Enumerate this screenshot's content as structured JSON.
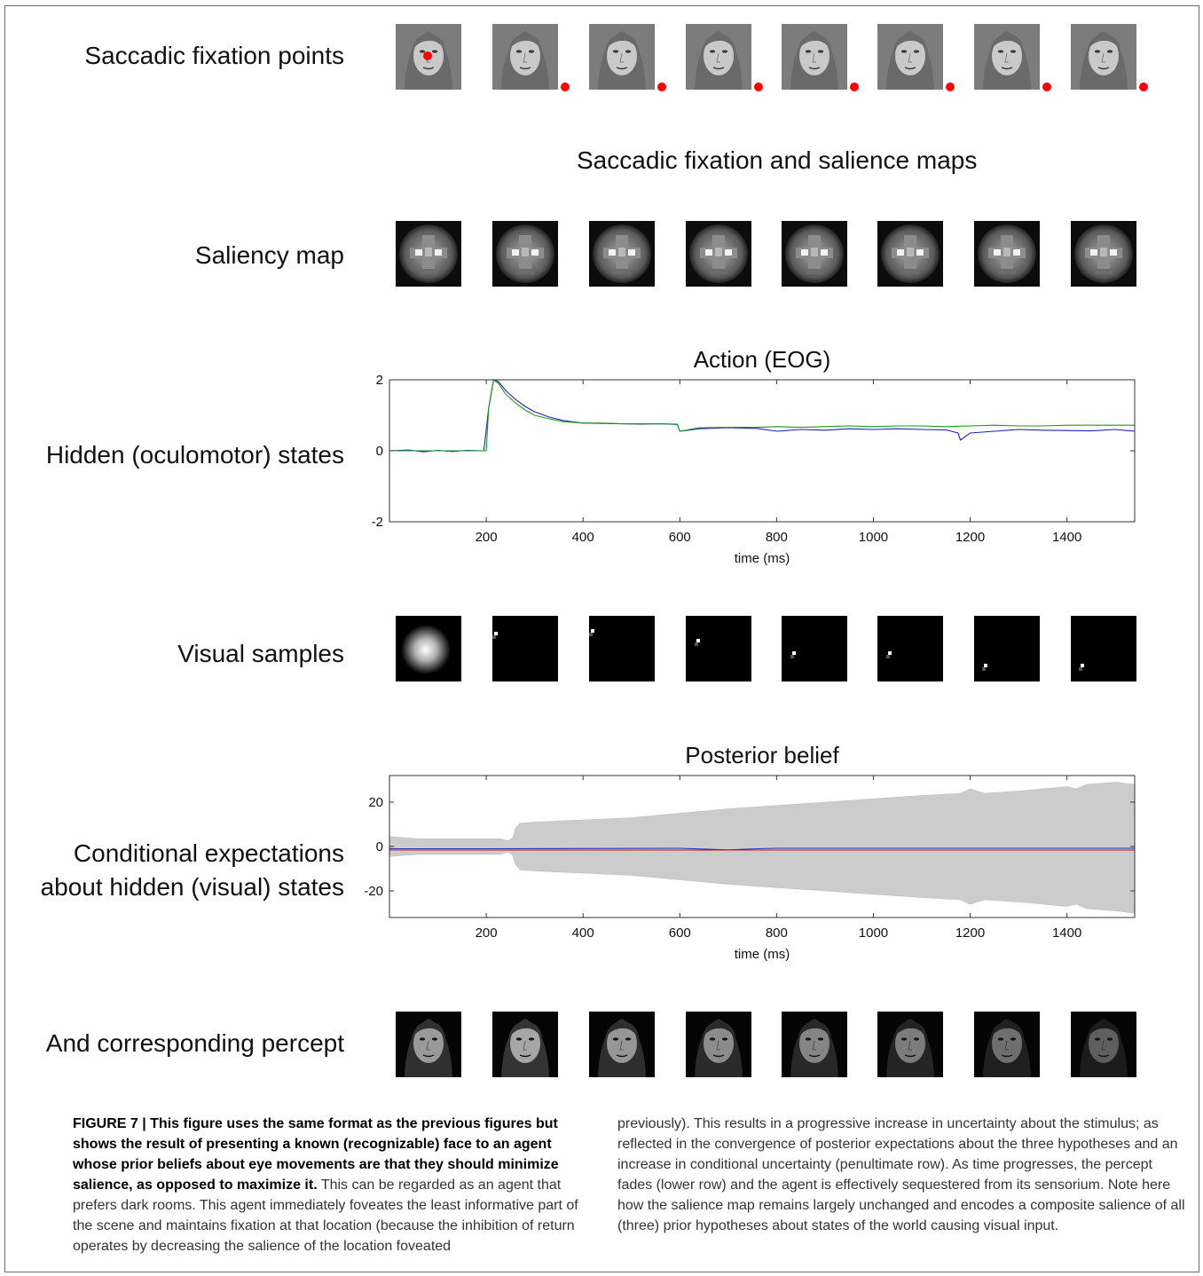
{
  "rows": {
    "fixation_label": "Saccadic fixation points",
    "saliency_label": "Saliency map",
    "hidden_label": "Hidden (oculomotor) states",
    "visual_label": "Visual samples",
    "conditional_label_line1": "Conditional expectations",
    "conditional_label_line2": "about hidden (visual) states",
    "percept_label": "And corresponding percept"
  },
  "section_title": "Saccadic fixation and salience maps",
  "colors": {
    "fixation_dot": "#ff0000",
    "eog_series_1": "#2020c0",
    "eog_series_2": "#1a9a1a",
    "posterior_band": "#cccccc",
    "posterior_line_blue": "#2a2ab8",
    "posterior_line_red": "#c02020"
  },
  "chart_data": [
    {
      "type": "line",
      "title": "Action (EOG)",
      "xlabel": "time (ms)",
      "ylabel": "",
      "xlim": [
        0,
        1540
      ],
      "ylim": [
        -2,
        2
      ],
      "xticks": [
        200,
        400,
        600,
        800,
        1000,
        1200,
        1400
      ],
      "yticks": [
        2,
        0,
        -2
      ],
      "grid": false,
      "series": [
        {
          "x": [
            0,
            40,
            70,
            100,
            130,
            160,
            195,
            205,
            215,
            225,
            240,
            260,
            280,
            300,
            330,
            360,
            400,
            440,
            480,
            520,
            560,
            595,
            600,
            640,
            700,
            760,
            800,
            850,
            900,
            950,
            1000,
            1050,
            1100,
            1150,
            1175,
            1180,
            1200,
            1250,
            1300,
            1350,
            1400,
            1450,
            1500,
            1540
          ],
          "y": [
            0,
            0.02,
            -0.03,
            0.01,
            -0.02,
            0.01,
            0,
            1.2,
            2.0,
            1.95,
            1.7,
            1.45,
            1.25,
            1.1,
            0.95,
            0.85,
            0.78,
            0.77,
            0.76,
            0.75,
            0.76,
            0.74,
            0.55,
            0.62,
            0.65,
            0.63,
            0.55,
            0.6,
            0.58,
            0.62,
            0.6,
            0.62,
            0.6,
            0.59,
            0.5,
            0.3,
            0.5,
            0.55,
            0.6,
            0.58,
            0.57,
            0.56,
            0.6,
            0.55
          ]
        },
        {
          "x": [
            0,
            200,
            205,
            215,
            225,
            240,
            260,
            280,
            300,
            330,
            360,
            400,
            440,
            480,
            520,
            560,
            595,
            600,
            640,
            700,
            760,
            800,
            850,
            900,
            950,
            1000,
            1050,
            1100,
            1150,
            1200,
            1250,
            1300,
            1350,
            1400,
            1450,
            1500,
            1540
          ],
          "y": [
            0,
            0,
            1.2,
            2.0,
            1.9,
            1.6,
            1.35,
            1.15,
            1.0,
            0.9,
            0.82,
            0.78,
            0.78,
            0.76,
            0.76,
            0.76,
            0.75,
            0.55,
            0.65,
            0.66,
            0.66,
            0.68,
            0.66,
            0.68,
            0.7,
            0.68,
            0.7,
            0.7,
            0.68,
            0.7,
            0.72,
            0.7,
            0.7,
            0.72,
            0.72,
            0.72,
            0.72
          ]
        }
      ]
    },
    {
      "type": "area",
      "title": "Posterior belief",
      "xlabel": "time (ms)",
      "ylabel": "",
      "xlim": [
        0,
        1540
      ],
      "ylim": [
        -32,
        32
      ],
      "xticks": [
        200,
        400,
        600,
        800,
        1000,
        1200,
        1400
      ],
      "yticks": [
        20,
        0,
        -20
      ],
      "grid": false,
      "band": {
        "x": [
          0,
          30,
          60,
          100,
          150,
          200,
          230,
          245,
          255,
          260,
          270,
          300,
          400,
          500,
          600,
          700,
          800,
          900,
          1000,
          1100,
          1180,
          1200,
          1215,
          1230,
          1300,
          1400,
          1420,
          1440,
          1500,
          1540
        ],
        "upper": [
          4.5,
          4,
          3.5,
          3.5,
          3.5,
          3.5,
          3.5,
          2.5,
          4,
          8,
          10.5,
          11,
          12,
          13,
          15,
          17,
          18.5,
          20,
          21.5,
          23,
          24,
          26,
          25,
          24,
          25,
          27,
          26,
          28,
          29,
          28
        ],
        "lower": [
          -4.5,
          -4,
          -3.5,
          -3.5,
          -3.5,
          -3.5,
          -3.5,
          -2.5,
          -4,
          -8,
          -10.5,
          -11,
          -12,
          -13,
          -15,
          -17,
          -18.5,
          -20,
          -21.5,
          -23,
          -24,
          -26,
          -25,
          -24,
          -25,
          -27,
          -26,
          -28,
          -29,
          -30
        ]
      },
      "series": [
        {
          "x": [
            0,
            200,
            600,
            700,
            760,
            800,
            1540
          ],
          "y": [
            -1,
            -1,
            -0.8,
            -1.5,
            -1,
            -0.8,
            -0.8
          ]
        },
        {
          "x": [
            0,
            200,
            600,
            800,
            1540
          ],
          "y": [
            -1.6,
            -1.6,
            -1.6,
            -1.6,
            -1.6
          ]
        }
      ]
    }
  ],
  "caption": {
    "figure_label": "FIGURE 7 | ",
    "bold_text": "This figure uses the same format as the previous figures but shows the result of presenting a known (recognizable) face to an agent whose prior beliefs about eye movements are that they should minimize salience, as opposed to maximize it.",
    "left_rest": " This can be regarded as an agent that prefers dark rooms. This agent immediately foveates the least informative part of the scene and maintains fixation at that location (because the inhibition of return operates by decreasing the salience of the location foveated",
    "right_text": "previously). This results in a progressive increase in uncertainty about the stimulus; as reflected in the convergence of posterior expectations about the three hypotheses and an increase in conditional uncertainty (penultimate row). As time progresses, the percept fades (lower row) and the agent is effectively sequestered from its sensorium. Note here how the salience map remains largely unchanged and encodes a composite salience of all (three) prior hypotheses about states of the world causing visual input."
  }
}
